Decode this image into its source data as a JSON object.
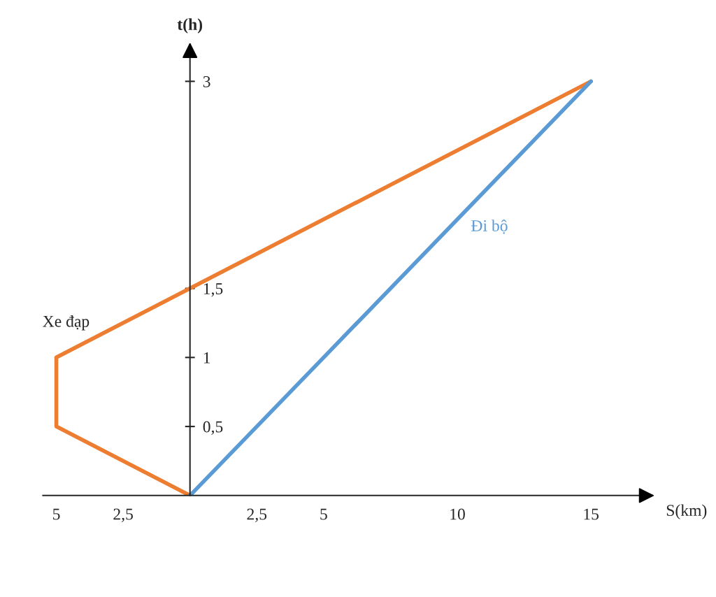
{
  "chart_data": {
    "type": "line",
    "xlabel": "S(km)",
    "ylabel": "t(h)",
    "xlim": [
      -5.5,
      17
    ],
    "ylim": [
      0,
      3.2
    ],
    "xticks": [
      {
        "value": -5,
        "label": "5"
      },
      {
        "value": -2.5,
        "label": "2,5"
      },
      {
        "value": 2.5,
        "label": "2,5"
      },
      5,
      10,
      15
    ],
    "yticks": [
      {
        "value": 0.5,
        "label": "0,5"
      },
      1,
      {
        "value": 1.5,
        "label": "1,5"
      },
      3
    ],
    "grid": false,
    "legend": false,
    "marker": "none",
    "line_style": "solid",
    "series": [
      {
        "name": "Xe đạp",
        "color": "#ed7d31",
        "x": [
          0,
          -5,
          -5,
          0,
          15
        ],
        "values": [
          0,
          0.5,
          1,
          1.5,
          3
        ]
      },
      {
        "name": "Đi bộ",
        "color": "#5b9bd5",
        "x": [
          0,
          2.5,
          5,
          15
        ],
        "values": [
          0,
          0.5,
          1,
          3
        ]
      }
    ]
  }
}
